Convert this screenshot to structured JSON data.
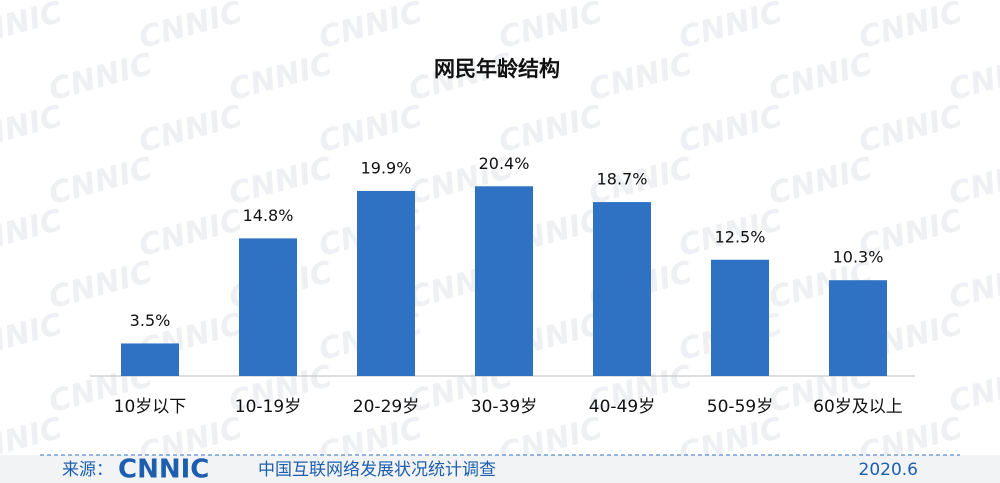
{
  "chart_data": {
    "type": "bar",
    "title": "网民年龄结构",
    "categories": [
      "10岁以下",
      "10-19岁",
      "20-29岁",
      "30-39岁",
      "40-49岁",
      "50-59岁",
      "60岁及以上"
    ],
    "values": [
      3.5,
      14.8,
      19.9,
      20.4,
      18.7,
      12.5,
      10.3
    ],
    "value_labels": [
      "3.5%",
      "14.8%",
      "19.9%",
      "20.4%",
      "18.7%",
      "12.5%",
      "10.3%"
    ],
    "color": "#2f72c4"
  },
  "watermark": "CNNIC",
  "footer": {
    "source": "来源：",
    "logo": "CNNIC",
    "survey": "中国互联网络发展状况统计调查",
    "date": "2020.6"
  }
}
